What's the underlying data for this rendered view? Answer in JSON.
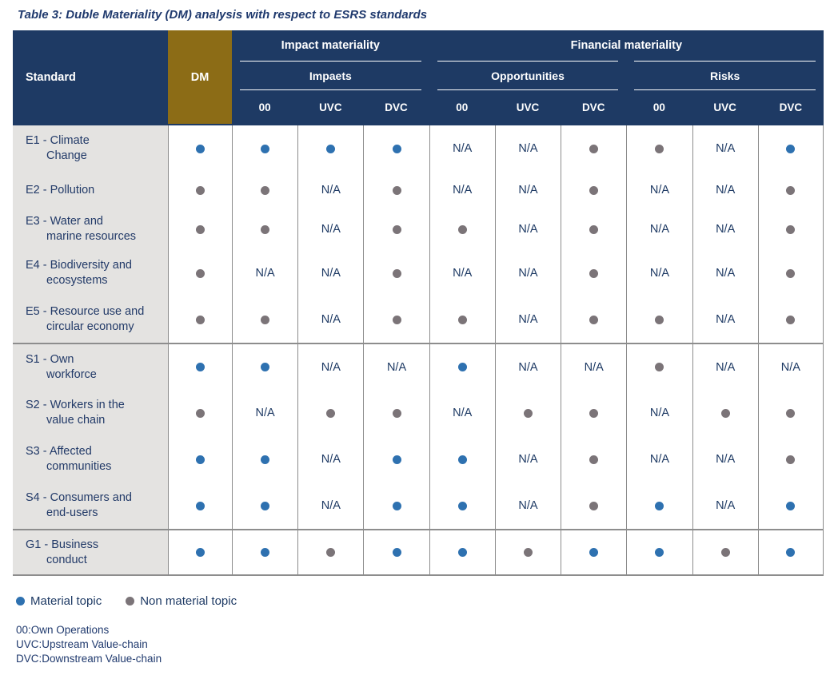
{
  "title": "Table 3: Duble Materiality (DM) analysis with respect to ESRS standards",
  "table": {
    "na_label": "N/A",
    "header": {
      "standard": "Standard",
      "dm": "DM",
      "impact_group": "Impact materiality",
      "financial_group": "Financial materiality",
      "impacts": "Impaets",
      "opportunities": "Opportunities",
      "risks": "Risks",
      "subcols": [
        "00",
        "UVC",
        "DVC"
      ]
    },
    "rows": [
      {
        "group": "E",
        "label_line1": "E1 - Climate",
        "label_line2": "Change",
        "cells": [
          "M",
          "M",
          "M",
          "M",
          "NA",
          "NA",
          "X",
          "X",
          "NA",
          "M"
        ]
      },
      {
        "group": "E",
        "label_line1": "E2 - Pollution",
        "label_line2": "",
        "cells": [
          "X",
          "X",
          "NA",
          "X",
          "NA",
          "NA",
          "X",
          "NA",
          "NA",
          "X"
        ]
      },
      {
        "group": "E",
        "label_line1": "E3 - Water and",
        "label_line2": "marine resources",
        "cells": [
          "X",
          "X",
          "NA",
          "X",
          "X",
          "NA",
          "X",
          "NA",
          "NA",
          "X"
        ]
      },
      {
        "group": "E",
        "label_line1": "E4 - Biodiversity and",
        "label_line2": "ecosystems",
        "cells": [
          "X",
          "NA",
          "NA",
          "X",
          "NA",
          "NA",
          "X",
          "NA",
          "NA",
          "X"
        ]
      },
      {
        "group": "E",
        "label_line1": "E5 - Resource use and",
        "label_line2": "circular economy",
        "cells": [
          "X",
          "X",
          "NA",
          "X",
          "X",
          "NA",
          "X",
          "X",
          "NA",
          "X"
        ]
      },
      {
        "group": "S",
        "label_line1": "S1 - Own",
        "label_line2": "workforce",
        "cells": [
          "M",
          "M",
          "NA",
          "NA",
          "M",
          "NA",
          "NA",
          "X",
          "NA",
          "NA"
        ]
      },
      {
        "group": "S",
        "label_line1": "S2 - Workers in the",
        "label_line2": "value chain",
        "cells": [
          "X",
          "NA",
          "X",
          "X",
          "NA",
          "X",
          "X",
          "NA",
          "X",
          "X"
        ]
      },
      {
        "group": "S",
        "label_line1": "S3 - Affected",
        "label_line2": "communities",
        "cells": [
          "M",
          "M",
          "NA",
          "M",
          "M",
          "NA",
          "X",
          "NA",
          "NA",
          "X"
        ]
      },
      {
        "group": "S",
        "label_line1": "S4 - Consumers and",
        "label_line2": "end-users",
        "cells": [
          "M",
          "M",
          "NA",
          "M",
          "M",
          "NA",
          "X",
          "M",
          "NA",
          "M"
        ]
      },
      {
        "group": "G",
        "label_line1": "G1 - Business",
        "label_line2": "conduct",
        "cells": [
          "M",
          "M",
          "X",
          "M",
          "M",
          "X",
          "M",
          "M",
          "X",
          "M"
        ]
      }
    ]
  },
  "legend": [
    {
      "marker": "material",
      "label": "Material topic"
    },
    {
      "marker": "non_material",
      "label": "Non material topic"
    }
  ],
  "footnotes": [
    "00:Own Operations",
    "UVC:Upstream Value-chain",
    "DVC:Downstream Value-chain"
  ],
  "colors": {
    "header_navy": "#1e3a64",
    "dm_gold": "#8c6c16",
    "material_dot_blue": "#2e71b0",
    "non_material_dot_gray": "#7b7478",
    "row_label_bg": "#e4e3e1",
    "grid_line": "#8c8c8c"
  }
}
